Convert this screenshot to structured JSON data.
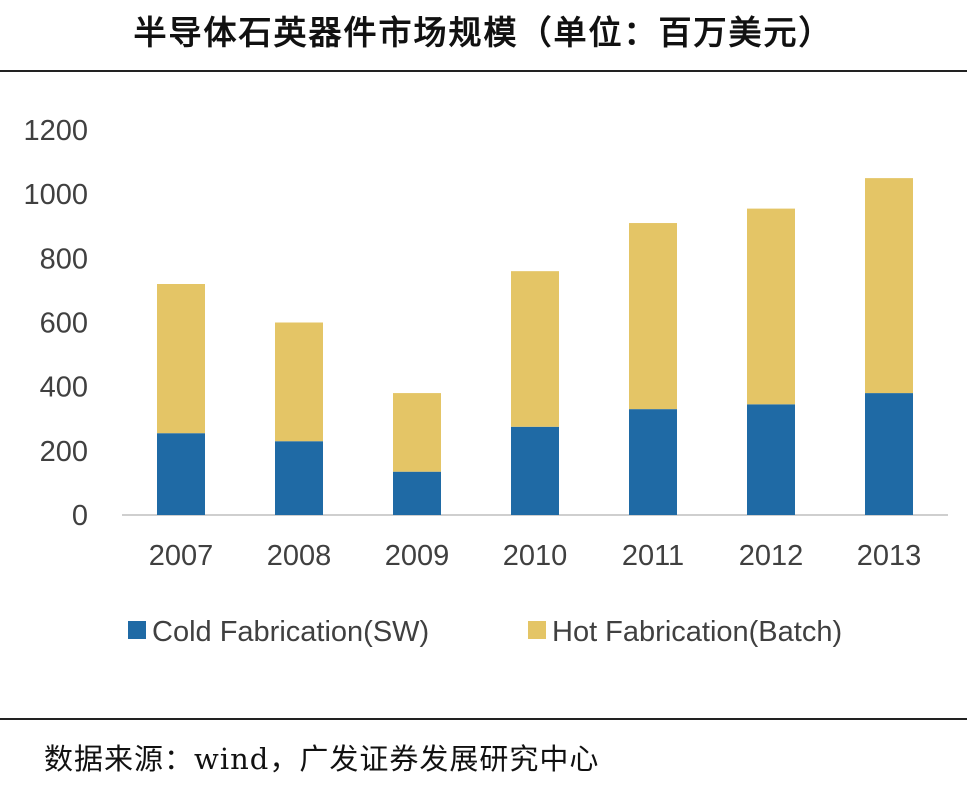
{
  "page": {
    "title": "半导体石英器件市场规模（单位：百万美元）",
    "source": "数据来源：wind，广发证券发展研究中心"
  },
  "chart_data": {
    "type": "bar",
    "stacked": true,
    "title": "半导体石英器件市场规模（单位：百万美元）",
    "categories": [
      "2007",
      "2008",
      "2009",
      "2010",
      "2011",
      "2012",
      "2013"
    ],
    "series": [
      {
        "name": "Cold Fabrication(SW)",
        "color": "#1f6aa5",
        "values": [
          255,
          230,
          135,
          275,
          330,
          345,
          380
        ]
      },
      {
        "name": "Hot Fabrication(Batch)",
        "color": "#e4c566",
        "values": [
          465,
          370,
          245,
          485,
          580,
          610,
          670
        ]
      }
    ],
    "ylim": [
      0,
      1200
    ],
    "yticks": [
      0,
      200,
      400,
      600,
      800,
      1000,
      1200
    ],
    "xlabel": "",
    "ylabel": "",
    "grid": false,
    "legend": "bottom"
  }
}
